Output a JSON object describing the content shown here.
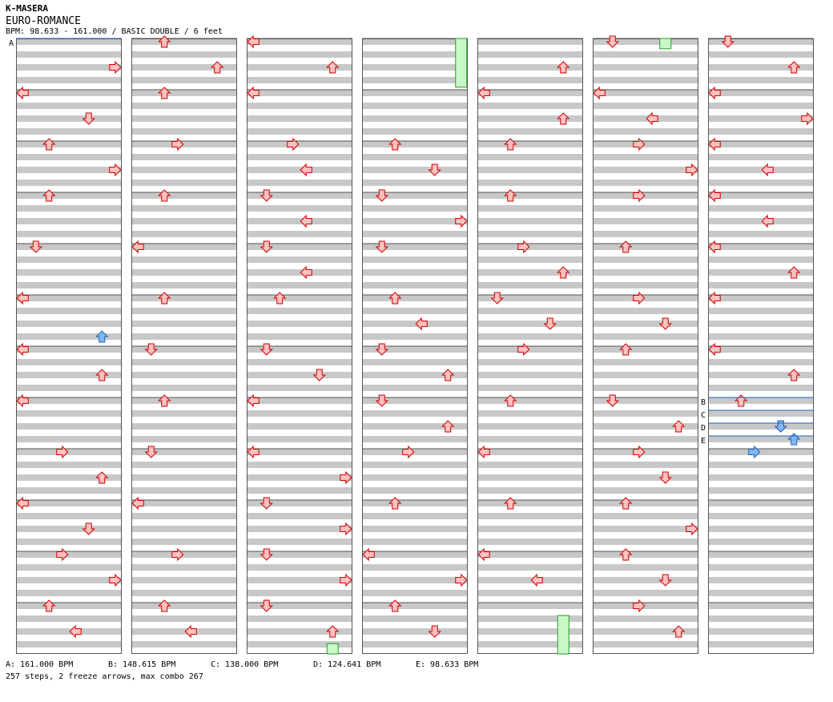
{
  "header": {
    "artist": "K-MASERA",
    "title": "EURO-ROMANCE",
    "info": "BPM: 98.633 - 161.000 / BASIC DOUBLE / 6 feet"
  },
  "chart_data": {
    "type": "step-chart",
    "columns": 7,
    "measures_per_column": 12,
    "lanes": 8,
    "rows_per_measure": 8,
    "colors": {
      "arrow_fill": "#ffc0c0",
      "arrow_stroke": "#cc0000",
      "freeze_fill": "#c8f8c8",
      "freeze_stroke": "#2a9a2a",
      "bpm_line": "#2060c0",
      "shade": "#c8c8c8"
    },
    "lane_dirs": [
      "L",
      "D",
      "U",
      "R",
      "L",
      "D",
      "U",
      "R"
    ],
    "notes": [
      [
        0,
        0.5,
        "R"
      ],
      [
        0,
        1,
        "L"
      ],
      [
        0,
        1.5,
        "D"
      ],
      [
        0,
        2,
        "U"
      ],
      [
        0,
        2.5,
        "R"
      ],
      [
        0,
        3,
        "U"
      ],
      [
        0,
        4,
        "D"
      ],
      [
        0,
        5,
        "L"
      ],
      [
        0,
        6,
        "L"
      ],
      [
        0,
        6.5,
        "U"
      ],
      [
        0,
        7,
        "L"
      ],
      [
        0,
        8,
        "R"
      ],
      [
        0,
        8.5,
        "U"
      ],
      [
        0,
        9,
        "L"
      ],
      [
        0,
        9.5,
        "D"
      ],
      [
        0,
        10,
        "R"
      ],
      [
        0,
        10.5,
        "R"
      ],
      [
        0,
        11,
        "U"
      ],
      [
        0,
        11.5,
        "L"
      ],
      [
        1,
        0,
        "U"
      ],
      [
        1,
        0.5,
        "U"
      ],
      [
        1,
        1,
        "U"
      ],
      [
        1,
        2,
        "R"
      ],
      [
        1,
        3,
        "U"
      ],
      [
        1,
        4,
        "L"
      ],
      [
        1,
        5,
        "U"
      ],
      [
        1,
        6,
        "D"
      ],
      [
        1,
        7,
        "U"
      ],
      [
        1,
        8,
        "D"
      ],
      [
        1,
        9,
        "L"
      ],
      [
        1,
        10,
        "R"
      ],
      [
        1,
        11,
        "U"
      ],
      [
        1,
        11.5,
        "L"
      ],
      [
        2,
        0,
        "L"
      ],
      [
        2,
        0.5,
        "U"
      ],
      [
        2,
        1,
        "L"
      ],
      [
        2,
        2,
        "R"
      ],
      [
        2,
        2.5,
        "L"
      ],
      [
        2,
        3,
        "D"
      ],
      [
        2,
        3.5,
        "L"
      ],
      [
        2,
        4,
        "D"
      ],
      [
        2,
        4.5,
        "L"
      ],
      [
        2,
        5,
        "U"
      ],
      [
        2,
        6,
        "D"
      ],
      [
        2,
        6.5,
        "D"
      ],
      [
        2,
        7,
        "L"
      ],
      [
        2,
        8,
        "L"
      ],
      [
        2,
        8.5,
        "R"
      ],
      [
        2,
        9,
        "D"
      ],
      [
        2,
        9.5,
        "R"
      ],
      [
        2,
        10,
        "D"
      ],
      [
        2,
        10.5,
        "R"
      ],
      [
        2,
        11,
        "D"
      ],
      [
        2,
        11.5,
        "U"
      ],
      [
        3,
        2,
        "U"
      ],
      [
        3,
        2.5,
        "D"
      ],
      [
        3,
        3,
        "D"
      ],
      [
        3,
        3.5,
        "R"
      ],
      [
        3,
        4,
        "D"
      ],
      [
        3,
        5,
        "U"
      ],
      [
        3,
        5.5,
        "L"
      ],
      [
        3,
        6,
        "D"
      ],
      [
        3,
        6.5,
        "U"
      ],
      [
        3,
        7,
        "D"
      ],
      [
        3,
        7.5,
        "U"
      ],
      [
        3,
        8,
        "R"
      ],
      [
        3,
        9,
        "U"
      ],
      [
        3,
        10,
        "L"
      ],
      [
        3,
        10.5,
        "R"
      ],
      [
        3,
        11,
        "U"
      ],
      [
        3,
        11.5,
        "D"
      ],
      [
        4,
        0.5,
        "U"
      ],
      [
        4,
        1,
        "L"
      ],
      [
        4,
        1.5,
        "U"
      ],
      [
        4,
        2,
        "U"
      ],
      [
        4,
        3,
        "U"
      ],
      [
        4,
        4,
        "R"
      ],
      [
        4,
        4.5,
        "U"
      ],
      [
        4,
        5,
        "D"
      ],
      [
        4,
        5.5,
        "D"
      ],
      [
        4,
        6,
        "R"
      ],
      [
        4,
        7,
        "U"
      ],
      [
        4,
        8,
        "L"
      ],
      [
        4,
        9,
        "U"
      ],
      [
        4,
        10,
        "L"
      ],
      [
        4,
        10.5,
        "L"
      ],
      [
        5,
        0,
        "D"
      ],
      [
        5,
        1,
        "L"
      ],
      [
        5,
        1.5,
        "L"
      ],
      [
        5,
        2,
        "R"
      ],
      [
        5,
        2.5,
        "R"
      ],
      [
        5,
        3,
        "R"
      ],
      [
        5,
        4,
        "U"
      ],
      [
        5,
        5,
        "R"
      ],
      [
        5,
        5.5,
        "D"
      ],
      [
        5,
        6,
        "U"
      ],
      [
        5,
        7,
        "D"
      ],
      [
        5,
        7.5,
        "U"
      ],
      [
        5,
        8,
        "R"
      ],
      [
        5,
        8.5,
        "D"
      ],
      [
        5,
        9,
        "U"
      ],
      [
        5,
        9.5,
        "R"
      ],
      [
        5,
        10,
        "U"
      ],
      [
        5,
        10.5,
        "D"
      ],
      [
        5,
        11,
        "R"
      ],
      [
        5,
        11.5,
        "U"
      ],
      [
        6,
        0,
        "D"
      ],
      [
        6,
        0.5,
        "U"
      ],
      [
        6,
        1,
        "L"
      ],
      [
        6,
        1.5,
        "R"
      ],
      [
        6,
        2,
        "L"
      ],
      [
        6,
        2.5,
        "L"
      ],
      [
        6,
        3,
        "L"
      ],
      [
        6,
        3.5,
        "L"
      ],
      [
        6,
        4,
        "L"
      ],
      [
        6,
        4.5,
        "U"
      ],
      [
        6,
        5,
        "L"
      ],
      [
        6,
        6,
        "L"
      ],
      [
        6,
        6.5,
        "U"
      ],
      [
        6,
        7,
        "U"
      ],
      [
        6,
        7.5,
        "D"
      ]
    ],
    "freezes": [
      [
        3,
        0,
        0.95,
        7
      ],
      [
        5,
        0,
        0.2,
        5
      ],
      [
        2,
        11.8,
        12,
        6
      ],
      [
        4,
        11.25,
        12,
        6
      ]
    ],
    "mines_blue": [
      [
        0,
        5.75,
        "U"
      ],
      [
        6,
        7.5,
        "D"
      ],
      [
        6,
        7.75,
        "U"
      ],
      [
        6,
        8,
        "R"
      ]
    ],
    "bpm_marks": [
      {
        "label": "A",
        "col": 0,
        "measure": 0
      },
      {
        "label": "B",
        "col": 6,
        "measure": 7
      },
      {
        "label": "C",
        "col": 6,
        "measure": 7.25
      },
      {
        "label": "D",
        "col": 6,
        "measure": 7.5
      },
      {
        "label": "E",
        "col": 6,
        "measure": 7.75
      }
    ]
  },
  "footer": {
    "bpm_a": "A: 161.000 BPM",
    "bpm_b": "B: 148.615 BPM",
    "bpm_c": "C: 138.000 BPM",
    "bpm_d": "D: 124.641 BPM",
    "bpm_e": "E: 98.633 BPM",
    "stats": "257 steps, 2 freeze arrows, max combo 267"
  }
}
